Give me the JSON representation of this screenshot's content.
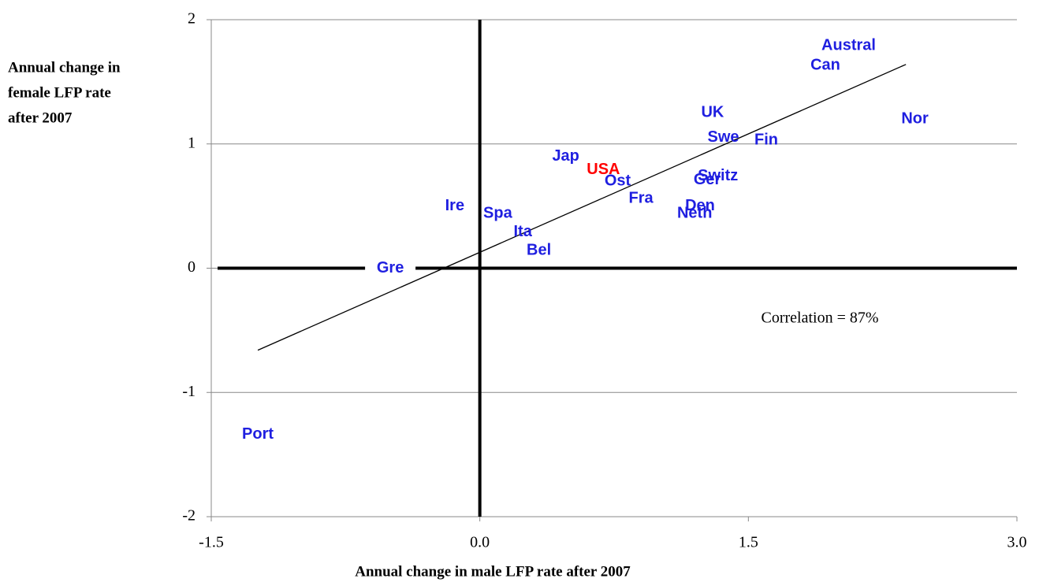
{
  "chart_data": {
    "type": "scatter",
    "x_label": "Annual change in male LFP rate after 2007",
    "y_label": [
      "Annual change in",
      "female LFP rate",
      "after 2007"
    ],
    "xlim": [
      -1.5,
      3.0
    ],
    "ylim": [
      -2,
      2
    ],
    "xticks": [
      -1.5,
      {
        "value": 0,
        "label": "0.0"
      },
      1.5,
      {
        "value": 3,
        "label": "3.0"
      }
    ],
    "yticks": [
      -2,
      -1,
      0,
      1,
      2
    ],
    "grid": true,
    "points": {
      "labels": [
        "Austral",
        "Can",
        "Nor",
        "UK",
        "Swe",
        "Fin",
        "Jap",
        "USA",
        "Ost",
        "Switz",
        "Ger",
        "Fra",
        "Den",
        "Neth",
        "Ire",
        "Spa",
        "Ita",
        "Bel",
        "Gre",
        "Port"
      ],
      "x": [
        2.06,
        1.93,
        2.43,
        1.3,
        1.36,
        1.6,
        0.48,
        0.69,
        0.77,
        1.33,
        1.27,
        0.9,
        1.23,
        1.2,
        -0.14,
        0.1,
        0.24,
        0.33,
        -0.5,
        -1.24
      ],
      "y": [
        1.79,
        1.63,
        1.2,
        1.25,
        1.05,
        1.03,
        0.9,
        0.79,
        0.7,
        0.74,
        0.71,
        0.56,
        0.5,
        0.44,
        0.5,
        0.44,
        0.29,
        0.14,
        0.0,
        -1.34
      ],
      "colors": [
        "#1f1fe0",
        "#1f1fe0",
        "#1f1fe0",
        "#1f1fe0",
        "#1f1fe0",
        "#1f1fe0",
        "#1f1fe0",
        "#ff0000",
        "#1f1fe0",
        "#1f1fe0",
        "#1f1fe0",
        "#1f1fe0",
        "#1f1fe0",
        "#1f1fe0",
        "#1f1fe0",
        "#1f1fe0",
        "#1f1fe0",
        "#1f1fe0",
        "#1f1fe0",
        "#1f1fe0"
      ]
    },
    "trendline": {
      "x": [
        -1.24,
        2.38
      ],
      "y": [
        -0.66,
        1.64
      ]
    },
    "annotation": "Correlation = 87%"
  }
}
